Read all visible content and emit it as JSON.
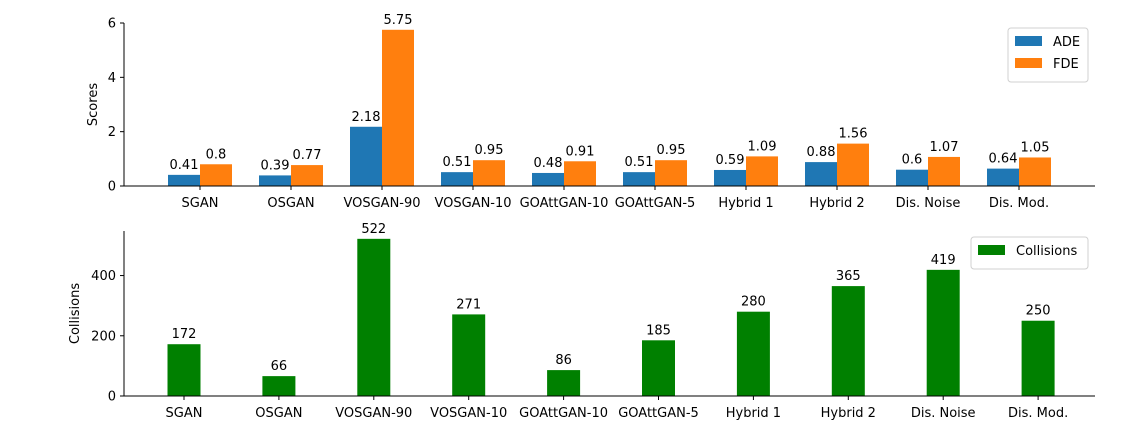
{
  "chart_data": [
    {
      "type": "bar",
      "categories": [
        "SGAN",
        "OSGAN",
        "VOSGAN-90",
        "VOSGAN-10",
        "GOAttGAN-10",
        "GOAttGAN-5",
        "Hybrid 1",
        "Hybrid 2",
        "Dis. Noise",
        "Dis. Mod."
      ],
      "series": [
        {
          "name": "ADE",
          "color": "#1f77b4",
          "values": [
            0.41,
            0.39,
            2.18,
            0.51,
            0.48,
            0.51,
            0.59,
            0.88,
            0.6,
            0.64
          ]
        },
        {
          "name": "FDE",
          "color": "#ff7f0e",
          "values": [
            0.8,
            0.77,
            5.75,
            0.95,
            0.91,
            0.95,
            1.09,
            1.56,
            1.07,
            1.05
          ]
        }
      ],
      "title": "",
      "xlabel": "",
      "ylabel": "Scores",
      "ylim": [
        0,
        6
      ],
      "yticks": [
        0,
        2,
        4,
        6
      ],
      "grid": false,
      "legend_position": "top-right"
    },
    {
      "type": "bar",
      "categories": [
        "SGAN",
        "OSGAN",
        "VOSGAN-90",
        "VOSGAN-10",
        "GOAttGAN-10",
        "GOAttGAN-5",
        "Hybrid 1",
        "Hybrid 2",
        "Dis. Noise",
        "Dis. Mod."
      ],
      "series": [
        {
          "name": "Collisions",
          "color": "#008000",
          "values": [
            172,
            66,
            522,
            271,
            86,
            185,
            280,
            365,
            419,
            250
          ]
        }
      ],
      "title": "",
      "xlabel": "",
      "ylabel": "Collisions",
      "ylim": [
        0,
        548
      ],
      "yticks": [
        0,
        200,
        400
      ],
      "grid": false,
      "legend_position": "top-right"
    }
  ]
}
